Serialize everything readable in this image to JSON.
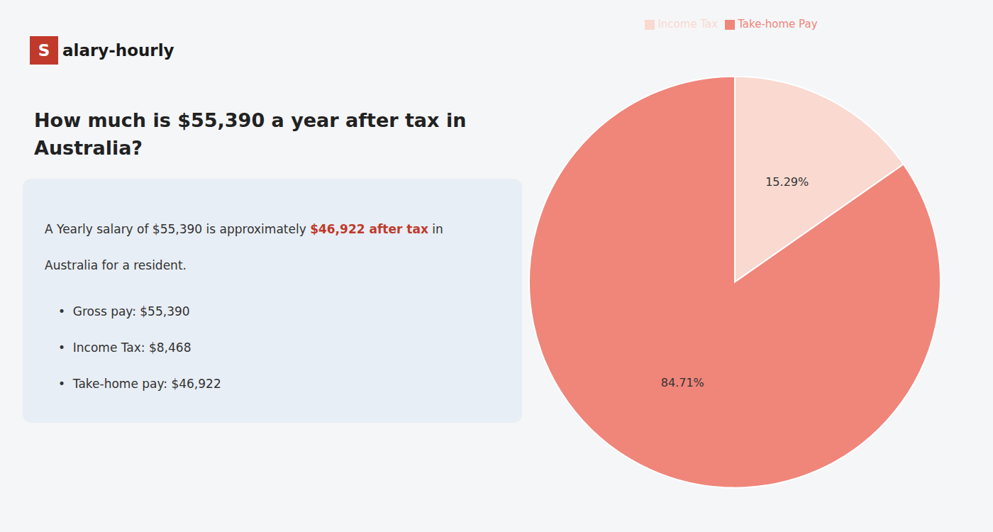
{
  "chart_data": {
    "type": "pie",
    "title": "How much is $55,390 a year after tax in\nAustralia?",
    "categories": [
      "Income Tax",
      "Take-home Pay"
    ],
    "values": [
      15.29,
      84.71
    ],
    "value_labels": [
      "15.29%",
      "84.71%"
    ],
    "colors": [
      "#f9d9d0",
      "#f0857a"
    ],
    "data_labels": true,
    "legend": "top",
    "annotations": [
      "S",
      "alary-hourly",
      "A Yearly salary of $55,390 is approximately ",
      "$46,922 after tax",
      " in",
      "Australia for a resident.",
      "•  Gross pay: $55,390",
      "•  Income Tax: $8,468",
      "•  Take-home pay: $46,922"
    ]
  }
}
